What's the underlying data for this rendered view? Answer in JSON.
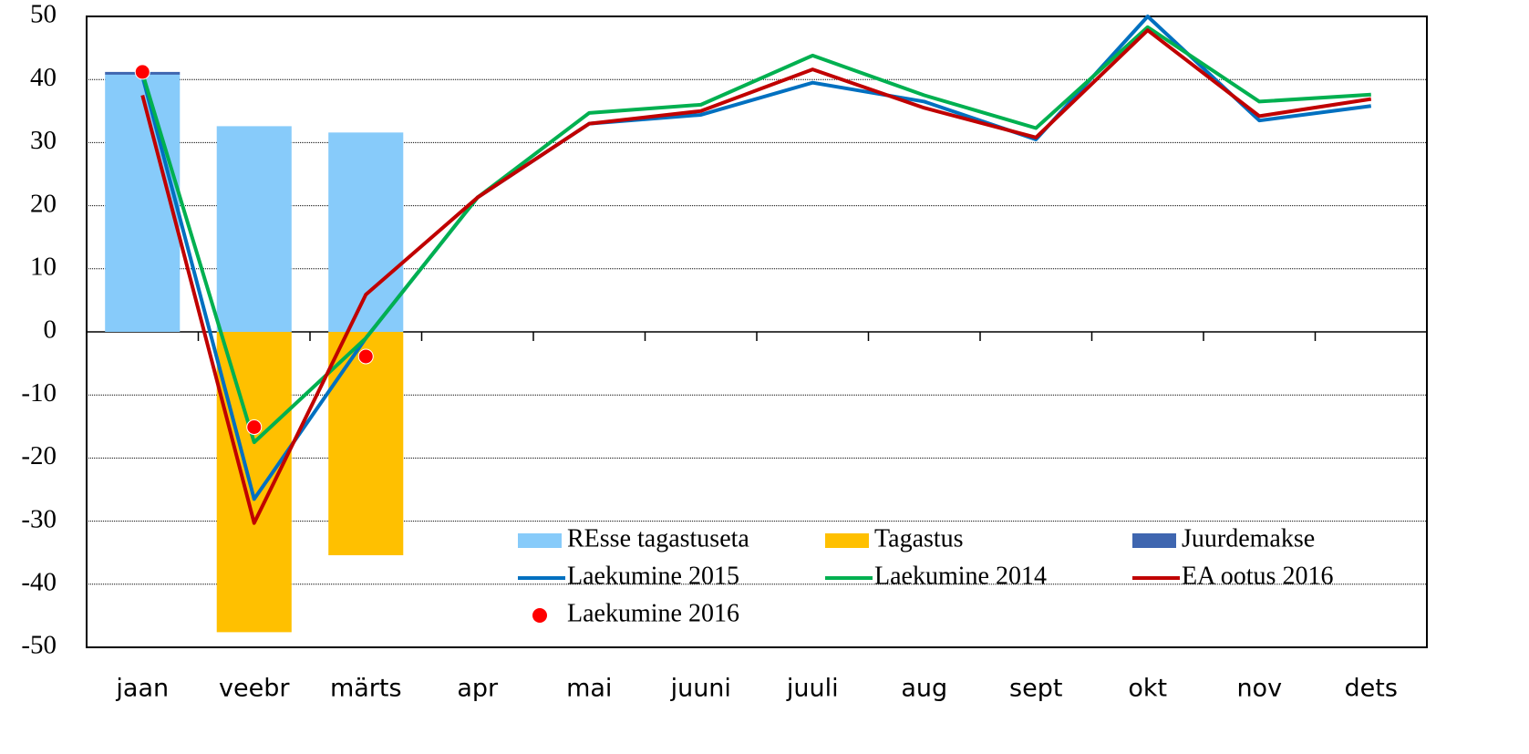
{
  "chart_data": {
    "type": "combo",
    "categories": [
      "jaan",
      "veebr",
      "märts",
      "apr",
      "mai",
      "juuni",
      "juuli",
      "aug",
      "sept",
      "okt",
      "nov",
      "dets"
    ],
    "ylim": [
      -50,
      50
    ],
    "yticks": [
      -50,
      -40,
      -30,
      -20,
      -10,
      0,
      10,
      20,
      30,
      40,
      50
    ],
    "grid": true,
    "series": [
      {
        "name": "REsse tagastuseta",
        "type": "bar",
        "color": "#87cbfa",
        "values": [
          40.8,
          32.6,
          31.6,
          null,
          null,
          null,
          null,
          null,
          null,
          null,
          null,
          null
        ]
      },
      {
        "name": "Tagastus",
        "type": "bar",
        "color": "#ffc000",
        "values": [
          null,
          -47.6,
          -35.4,
          null,
          null,
          null,
          null,
          null,
          null,
          null,
          null,
          null
        ]
      },
      {
        "name": "Juurdemakse",
        "type": "bar",
        "color": "#3f66b0",
        "values": [
          0.4,
          null,
          null,
          null,
          null,
          null,
          null,
          null,
          null,
          null,
          null,
          null
        ]
      },
      {
        "name": "Laekumine 2015",
        "type": "line",
        "color": "#0070c0",
        "values": [
          40.5,
          -26.5,
          -1,
          21.3,
          33,
          34.4,
          39.5,
          36.5,
          30.5,
          50,
          33.5,
          35.8
        ]
      },
      {
        "name": "Laekumine 2014",
        "type": "line",
        "color": "#00b050",
        "values": [
          41,
          -17.5,
          -1,
          21.3,
          34.7,
          36,
          43.8,
          37.5,
          32.3,
          48.3,
          36.5,
          37.6
        ]
      },
      {
        "name": "EA ootus 2016",
        "type": "line",
        "color": "#c00000",
        "values": [
          37.5,
          -30.3,
          5.9,
          21.3,
          33,
          35,
          41.6,
          35.5,
          30.8,
          47.8,
          34.2,
          36.9
        ]
      },
      {
        "name": "Laekumine 2016",
        "type": "scatter",
        "color": "#ff0000",
        "values": [
          41.2,
          -15.1,
          -3.9,
          null,
          null,
          null,
          null,
          null,
          null,
          null,
          null,
          null
        ]
      }
    ]
  }
}
